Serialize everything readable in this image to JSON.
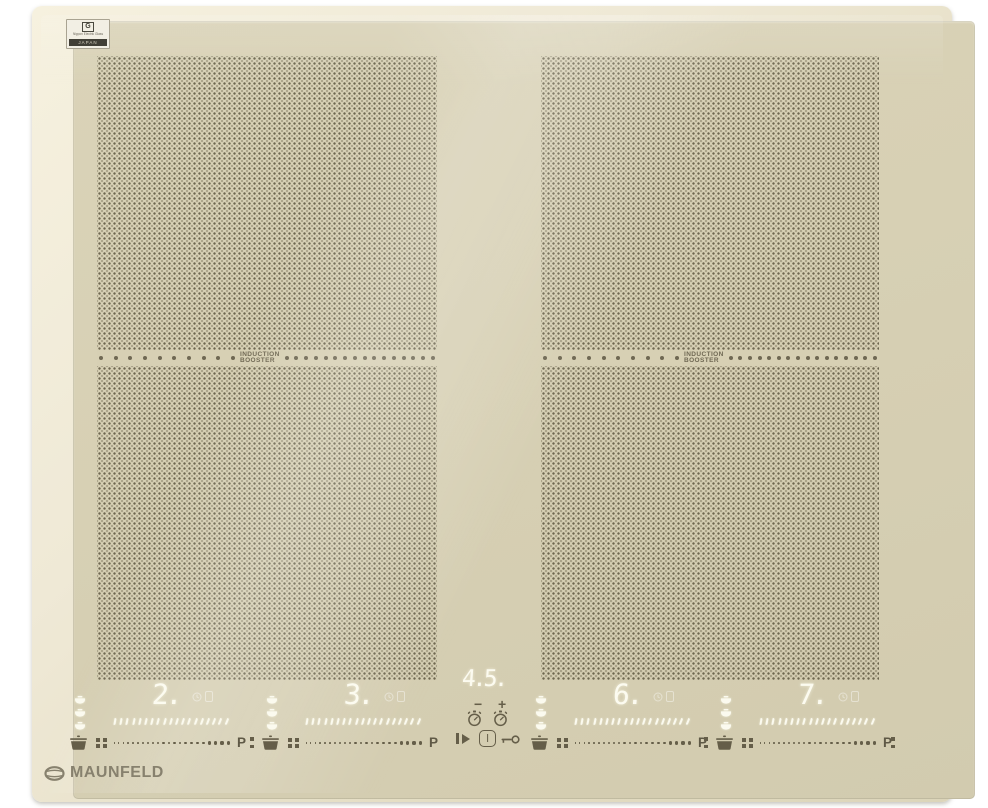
{
  "maker_label": {
    "logo": "G",
    "maker_text": "Nippon Electric Glass",
    "origin_text": "JAPAN"
  },
  "flex_zones": [
    {
      "booster_line1": "INDUCTION",
      "booster_line2": "BOOSTER"
    },
    {
      "booster_line1": "INDUCTION",
      "booster_line2": "BOOSTER"
    }
  ],
  "control_panel": {
    "zones": [
      {
        "level_display": "2.",
        "power_boost_label": "P"
      },
      {
        "level_display": "3.",
        "power_boost_label": "P"
      },
      {
        "level_display": "6.",
        "power_boost_label": "P"
      },
      {
        "level_display": "7.",
        "power_boost_label": "P"
      }
    ],
    "timer": {
      "display": "4.5.",
      "minus_label": "−",
      "plus_label": "+"
    },
    "icons": [
      "pause-icon",
      "power-icon",
      "child-lock-key-icon",
      "timer-stopwatch-icon",
      "pan-icon",
      "flex-zone-grid-icon",
      "pot-indicator-icon",
      "timer-clock-icon"
    ]
  },
  "brand": {
    "name": "MAUNFELD"
  },
  "colors": {
    "background": "#ffffff",
    "glass": "#d7d0b4",
    "bevel": "#efe9d6",
    "dot_pattern": "#625b44",
    "led": "#fcfbf0",
    "printed": "#655e49",
    "brand_logo": "#87816e"
  }
}
